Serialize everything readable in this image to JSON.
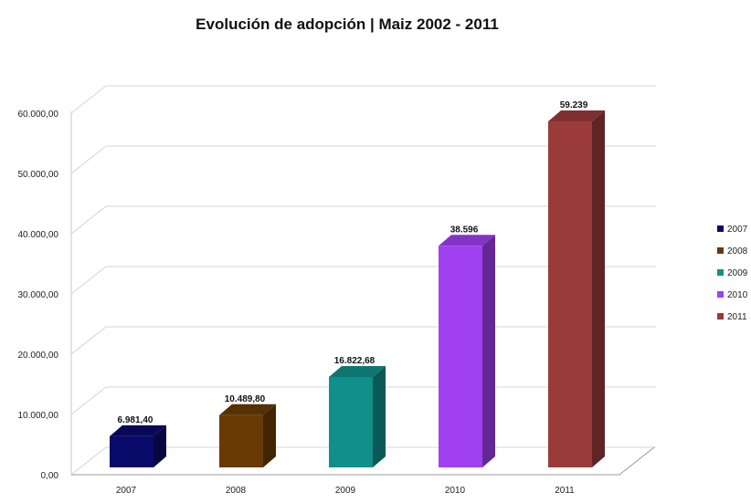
{
  "chart_data": {
    "type": "bar",
    "title": "Evolución de adopción | Maiz 2002 - 2011",
    "xlabel": "",
    "ylabel": "",
    "categories": [
      "2007",
      "2008",
      "2009",
      "2010",
      "2011"
    ],
    "values": [
      6981.4,
      10489.8,
      16822.68,
      38596,
      59239
    ],
    "data_labels": [
      "6.981,40",
      "10.489,80",
      "16.822,68",
      "38.596",
      "59.239"
    ],
    "ylim": [
      0,
      60000
    ],
    "yticks": [
      0,
      10000,
      20000,
      30000,
      40000,
      50000,
      60000
    ],
    "ytick_labels": [
      "0,00",
      "10.000,00",
      "20.000,00",
      "30.000,00",
      "40.000,00",
      "50.000,00",
      "60.000,00"
    ],
    "grid": true,
    "style": "3d-column",
    "legend": {
      "position": "right",
      "entries": [
        "2007",
        "2008",
        "2009",
        "2010",
        "2011"
      ]
    },
    "colors": [
      "#0a0a6a",
      "#6a3a05",
      "#118f8a",
      "#a040f0",
      "#9a3a3a"
    ]
  }
}
